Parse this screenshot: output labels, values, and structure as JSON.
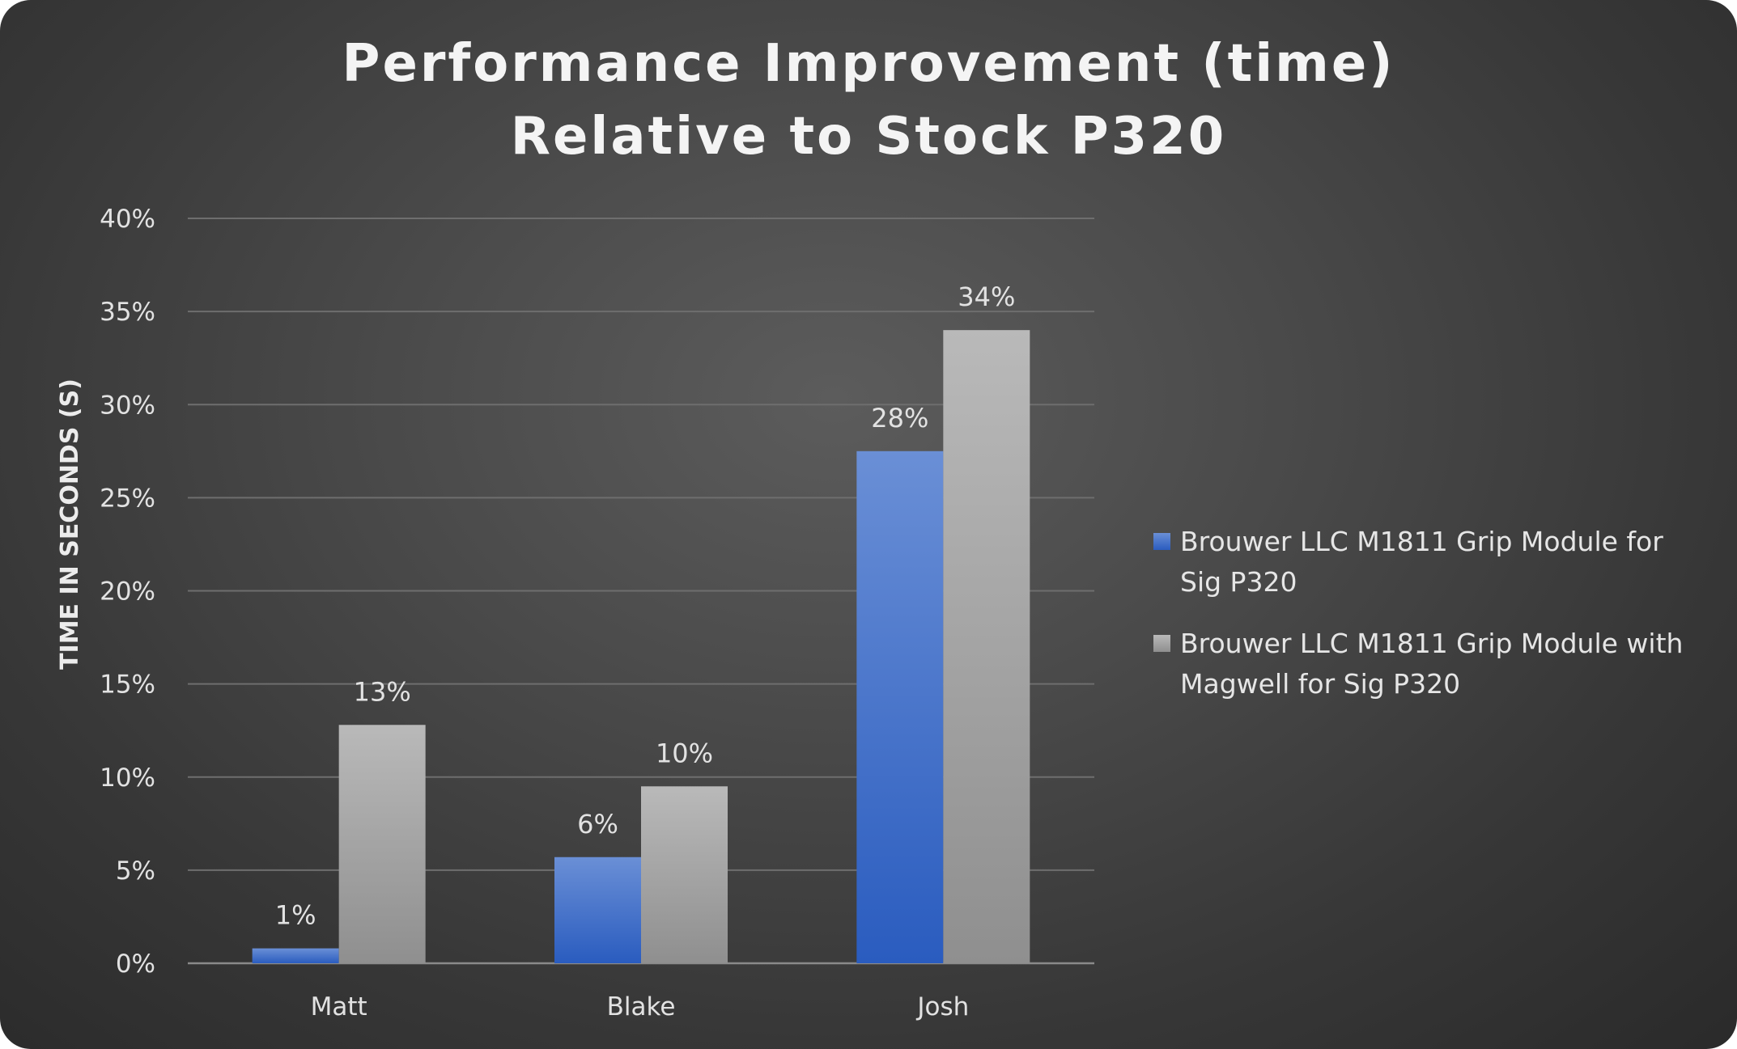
{
  "chart_data": {
    "type": "bar",
    "title": [
      "Performance Improvement (time)",
      "Relative to Stock P320"
    ],
    "xlabel": "",
    "ylabel": "TIME IN SECONDS (S)",
    "categories": [
      "Matt",
      "Blake",
      "Josh"
    ],
    "series": [
      {
        "name": "Brouwer LLC M1811 Grip Module for Sig P320",
        "legend_lines": [
          "Brouwer LLC M1811 Grip Module for",
          "Sig P320"
        ],
        "values": [
          0.8,
          5.7,
          27.5
        ],
        "labels": [
          "1%",
          "6%",
          "28%"
        ],
        "color": "#4472c4"
      },
      {
        "name": "Brouwer LLC M1811 Grip Module with Magwell for Sig P320",
        "legend_lines": [
          "Brouwer LLC M1811 Grip Module with",
          "Magwell for Sig P320"
        ],
        "values": [
          12.8,
          9.5,
          34.0
        ],
        "labels": [
          "13%",
          "10%",
          "34%"
        ],
        "color": "#a5a5a5"
      }
    ],
    "ylim": [
      0,
      40
    ],
    "ytick_values": [
      0,
      5,
      10,
      15,
      20,
      25,
      30,
      35,
      40
    ],
    "ytick_labels": [
      "0%",
      "5%",
      "10%",
      "15%",
      "20%",
      "25%",
      "30%",
      "35%",
      "40%"
    ],
    "grid": true,
    "legend_position": "right"
  }
}
